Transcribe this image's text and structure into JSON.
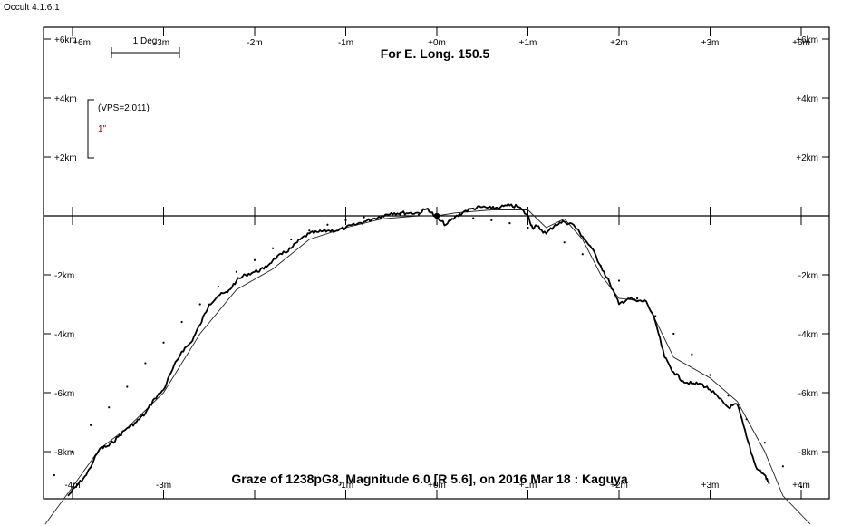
{
  "app": {
    "title": "Occult 4.1.6.1"
  },
  "chart_data": {
    "type": "line",
    "title": "For E. Long. 150.5",
    "subtitle": "Graze of  1238pG8,  Magnitude 6.0 [R 5.6],  on 2016 Mar 18  :  Kaguya",
    "x_unit_label_top": [
      "+6m",
      "-3m",
      "-2m",
      "-1m",
      "+0m",
      "+1m",
      "+2m",
      "+3m",
      "+6m"
    ],
    "x_tick_labels_top": [
      "+6m",
      "-3m",
      "-2m",
      "-1m",
      "+0m",
      "+1m",
      "+2m",
      "+3m",
      "+6m"
    ],
    "x_tick_labels_bottom": [
      "-4m",
      "-3m",
      "-1m",
      "+0m",
      "+1m",
      "+2m",
      "+3m",
      "+4m"
    ],
    "y_tick_labels": [
      "+6km",
      "+4km",
      "+2km",
      "-2km",
      "-4km",
      "-6km",
      "-8km"
    ],
    "xlim": [
      -4,
      4
    ],
    "ylim": [
      -9.6,
      6.4
    ],
    "scale_bar_label": "1 Deg",
    "vps_label": "(VPS=2.011)",
    "arcsec_label": "1\"",
    "limb_profile": {
      "x": [
        -4.05,
        -3.95,
        -3.85,
        -3.7,
        -3.6,
        -3.5,
        -3.4,
        -3.3,
        -3.2,
        -3.1,
        -3.0,
        -2.9,
        -2.8,
        -2.7,
        -2.6,
        -2.5,
        -2.4,
        -2.3,
        -2.2,
        -2.1,
        -2.0,
        -1.9,
        -1.8,
        -1.7,
        -1.6,
        -1.5,
        -1.4,
        -1.3,
        -1.2,
        -1.1,
        -1.0,
        -0.9,
        -0.8,
        -0.7,
        -0.6,
        -0.5,
        -0.4,
        -0.3,
        -0.2,
        -0.1,
        0.0,
        0.1,
        0.2,
        0.3,
        0.4,
        0.5,
        0.6,
        0.7,
        0.8,
        0.9,
        1.0,
        1.05,
        1.1,
        1.2,
        1.3,
        1.4,
        1.5,
        1.6,
        1.7,
        1.8,
        1.9,
        2.0,
        2.1,
        2.2,
        2.3,
        2.4,
        2.5,
        2.6,
        2.7,
        2.8,
        2.9,
        3.0,
        3.1,
        3.2,
        3.3,
        3.4,
        3.5,
        3.6,
        3.65
      ],
      "y": [
        -9.5,
        -9.15,
        -8.8,
        -7.9,
        -7.8,
        -7.5,
        -7.2,
        -7.0,
        -6.7,
        -6.2,
        -5.9,
        -5.2,
        -4.6,
        -4.3,
        -3.7,
        -3.0,
        -2.7,
        -2.6,
        -2.2,
        -2.0,
        -1.9,
        -1.8,
        -1.5,
        -1.3,
        -1.1,
        -0.8,
        -0.6,
        -0.55,
        -0.5,
        -0.5,
        -0.4,
        -0.3,
        -0.2,
        -0.1,
        0.0,
        0.1,
        0.1,
        0.1,
        0.1,
        0.25,
        -0.1,
        -0.3,
        -0.05,
        0.15,
        0.25,
        0.3,
        0.25,
        0.3,
        0.35,
        0.3,
        0.0,
        -0.4,
        -0.35,
        -0.6,
        -0.3,
        -0.2,
        -0.3,
        -0.7,
        -1.1,
        -1.7,
        -2.3,
        -3.0,
        -2.8,
        -2.9,
        -2.9,
        -3.6,
        -4.8,
        -5.3,
        -5.6,
        -5.7,
        -5.7,
        -5.9,
        -6.2,
        -6.5,
        -6.4,
        -7.5,
        -8.5,
        -8.8,
        -9.1
      ]
    },
    "smooth_profile": {
      "x": [
        -4.3,
        -4.0,
        -3.7,
        -3.4,
        -3.0,
        -2.6,
        -2.2,
        -1.8,
        -1.4,
        -1.0,
        -0.6,
        -0.2,
        0.0,
        0.2,
        0.6,
        1.0,
        1.2,
        1.4,
        1.6,
        1.8,
        2.0,
        2.3,
        2.6,
        3.0,
        3.3,
        3.6,
        3.8,
        4.1
      ],
      "y": [
        -10.5,
        -9.2,
        -7.9,
        -7.2,
        -6.0,
        -4.0,
        -2.5,
        -1.8,
        -0.8,
        -0.4,
        -0.1,
        0.0,
        0.0,
        0.1,
        0.2,
        0.2,
        -0.4,
        -0.1,
        -0.8,
        -2.0,
        -2.8,
        -2.9,
        -4.8,
        -5.5,
        -6.3,
        -8.0,
        -9.5,
        -10.5
      ]
    },
    "mean_limb_dots": {
      "x": [
        -4.2,
        -4.0,
        -3.8,
        -3.6,
        -3.4,
        -3.2,
        -3.0,
        -2.8,
        -2.6,
        -2.4,
        -2.2,
        -2.0,
        -1.8,
        -1.6,
        -1.4,
        -1.2,
        -1.0,
        -0.8,
        -0.6,
        -0.4,
        -0.2,
        0.0,
        0.2,
        0.4,
        0.6,
        0.8,
        1.0,
        1.2,
        1.4,
        1.6,
        1.8,
        2.0,
        2.2,
        2.4,
        2.6,
        2.8,
        3.0,
        3.2,
        3.4,
        3.6,
        3.8,
        4.0,
        4.2
      ],
      "y": [
        -8.8,
        -8.0,
        -7.1,
        -6.5,
        -5.8,
        -5.0,
        -4.3,
        -3.6,
        -3.0,
        -2.4,
        -1.9,
        -1.5,
        -1.1,
        -0.8,
        -0.5,
        -0.3,
        -0.15,
        -0.05,
        0.0,
        0.03,
        0.03,
        0.0,
        -0.03,
        -0.08,
        -0.15,
        -0.25,
        -0.4,
        -0.6,
        -0.9,
        -1.3,
        -1.7,
        -2.2,
        -2.8,
        -3.4,
        -4.0,
        -4.7,
        -5.4,
        -6.1,
        -6.9,
        -7.7,
        -8.5,
        -9.2,
        -9.8
      ]
    },
    "observer_point": {
      "x": 0.0,
      "y": 0.0
    },
    "grid": false,
    "legend": "none"
  }
}
